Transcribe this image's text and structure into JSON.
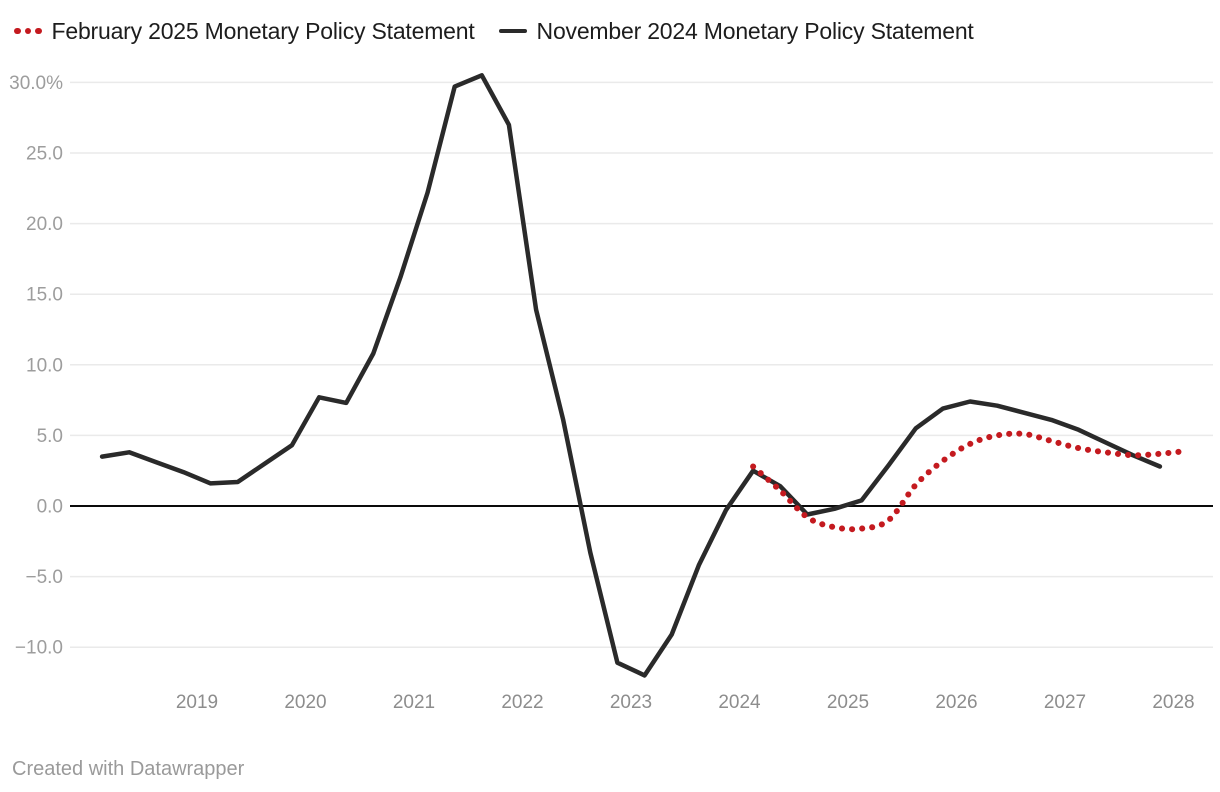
{
  "footer": {
    "text": "Created with Datawrapper"
  },
  "chart_data": {
    "type": "line",
    "title": "",
    "xlabel": "",
    "ylabel": "",
    "grid": "horizontal",
    "legend_position": "top-left",
    "ylim": [
      -12.5,
      31
    ],
    "xlim": [
      2018,
      2028.3
    ],
    "y_ticks": [
      {
        "v": 30,
        "label": "30.0%"
      },
      {
        "v": 25,
        "label": "25.0"
      },
      {
        "v": 20,
        "label": "20.0"
      },
      {
        "v": 15,
        "label": "15.0"
      },
      {
        "v": 10,
        "label": "10.0"
      },
      {
        "v": 5,
        "label": "5.0"
      },
      {
        "v": 0,
        "label": "0.0"
      },
      {
        "v": -5,
        "label": "−5.0"
      },
      {
        "v": -10,
        "label": "−10.0"
      }
    ],
    "x_ticks": [
      {
        "t": 2019,
        "label": "2019"
      },
      {
        "t": 2020,
        "label": "2020"
      },
      {
        "t": 2021,
        "label": "2021"
      },
      {
        "t": 2022,
        "label": "2022"
      },
      {
        "t": 2023,
        "label": "2023"
      },
      {
        "t": 2024,
        "label": "2024"
      },
      {
        "t": 2025,
        "label": "2025"
      },
      {
        "t": 2026,
        "label": "2026"
      },
      {
        "t": 2027,
        "label": "2027"
      },
      {
        "t": 2028,
        "label": "2028"
      }
    ],
    "series": [
      {
        "name": "February 2025 Monetary Policy Statement",
        "color": "#c41a1f",
        "style": "dotted",
        "interpolation": "smooth",
        "points": [
          [
            2024.0,
            2.8
          ],
          [
            2024.25,
            1.1
          ],
          [
            2024.5,
            -0.8
          ],
          [
            2024.75,
            -1.5
          ],
          [
            2025.0,
            -1.6
          ],
          [
            2025.25,
            -1.0
          ],
          [
            2025.5,
            1.5
          ],
          [
            2025.75,
            3.2
          ],
          [
            2026.0,
            4.4
          ],
          [
            2026.25,
            5.0
          ],
          [
            2026.5,
            5.1
          ],
          [
            2026.75,
            4.6
          ],
          [
            2027.0,
            4.1
          ],
          [
            2027.25,
            3.8
          ],
          [
            2027.5,
            3.6
          ],
          [
            2027.75,
            3.7
          ],
          [
            2028.0,
            3.9
          ]
        ]
      },
      {
        "name": "November 2024 Monetary Policy Statement",
        "color": "#2a2a2a",
        "style": "solid",
        "interpolation": "linear",
        "points": [
          [
            2018.0,
            3.5
          ],
          [
            2018.25,
            3.8
          ],
          [
            2018.5,
            3.1
          ],
          [
            2018.75,
            2.4
          ],
          [
            2019.0,
            1.6
          ],
          [
            2019.25,
            1.7
          ],
          [
            2019.5,
            3.0
          ],
          [
            2019.75,
            4.3
          ],
          [
            2020.0,
            7.7
          ],
          [
            2020.25,
            7.3
          ],
          [
            2020.5,
            10.8
          ],
          [
            2020.75,
            16.2
          ],
          [
            2021.0,
            22.2
          ],
          [
            2021.25,
            29.7
          ],
          [
            2021.5,
            30.5
          ],
          [
            2021.75,
            27.0
          ],
          [
            2022.0,
            13.9
          ],
          [
            2022.25,
            6.1
          ],
          [
            2022.5,
            -3.3
          ],
          [
            2022.75,
            -11.1
          ],
          [
            2023.0,
            -12.0
          ],
          [
            2023.25,
            -9.1
          ],
          [
            2023.5,
            -4.2
          ],
          [
            2023.75,
            -0.3
          ],
          [
            2024.0,
            2.5
          ],
          [
            2024.25,
            1.4
          ],
          [
            2024.5,
            -0.6
          ],
          [
            2024.75,
            -0.2
          ],
          [
            2025.0,
            0.4
          ],
          [
            2025.25,
            2.9
          ],
          [
            2025.5,
            5.5
          ],
          [
            2025.75,
            6.9
          ],
          [
            2026.0,
            7.4
          ],
          [
            2026.25,
            7.1
          ],
          [
            2026.5,
            6.6
          ],
          [
            2026.75,
            6.1
          ],
          [
            2027.0,
            5.4
          ],
          [
            2027.25,
            4.5
          ],
          [
            2027.5,
            3.6
          ],
          [
            2027.75,
            2.8
          ]
        ]
      }
    ]
  }
}
